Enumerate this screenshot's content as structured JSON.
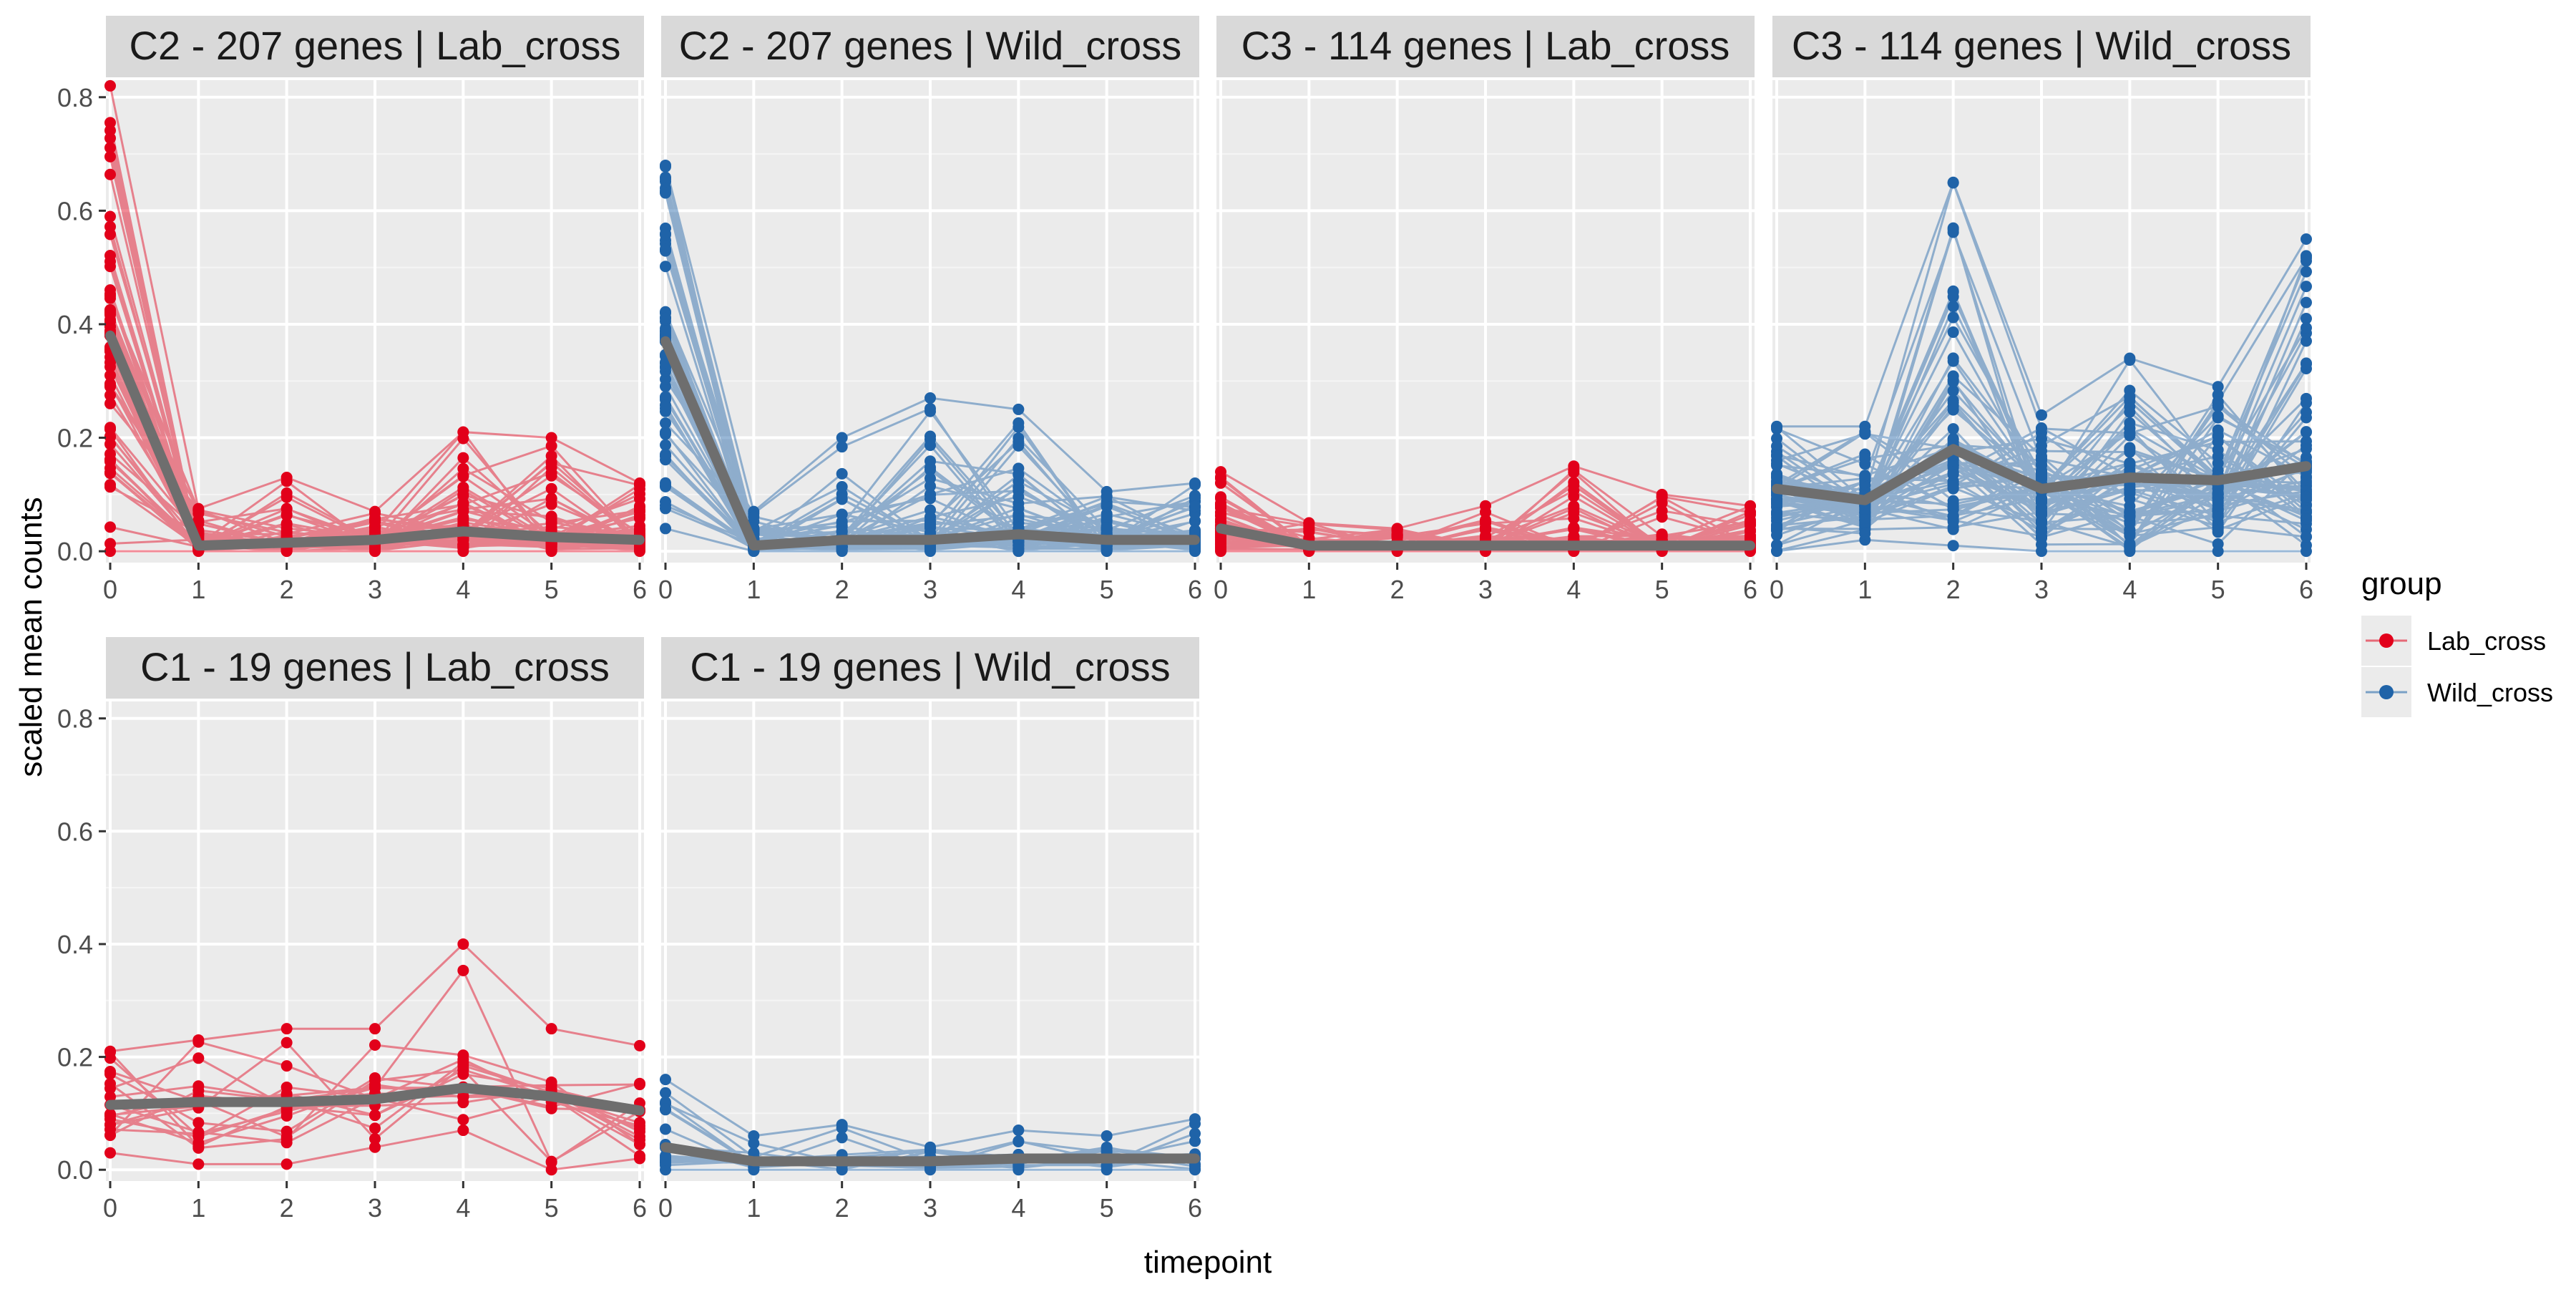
{
  "chart_data": {
    "type": "line",
    "xlabel": "timepoint",
    "ylabel": "scaled mean counts",
    "x_ticks": [
      "0",
      "1",
      "2",
      "3",
      "4",
      "5",
      "6"
    ],
    "y_ticks": [
      "0.0",
      "0.2",
      "0.4",
      "0.6",
      "0.8"
    ],
    "xlim": [
      0,
      6
    ],
    "ylim": [
      -0.02,
      0.83
    ],
    "grid": true,
    "legend": {
      "title": "group",
      "placement": "right",
      "entries": [
        {
          "name": "Lab_cross",
          "color": "#e2001a"
        },
        {
          "name": "Wild_cross",
          "color": "#1f63a8"
        }
      ]
    },
    "mean_line_color": "#6e6e6e",
    "panels": [
      {
        "title": "C2 - 207 genes | Lab_cross",
        "group": "Lab_cross",
        "cluster": "C2",
        "genes": 207,
        "mean": [
          0.38,
          0.01,
          0.015,
          0.02,
          0.035,
          0.025,
          0.02
        ],
        "spread": [
          [
            0.0,
            0.82
          ],
          [
            0.0,
            0.075
          ],
          [
            0.0,
            0.13
          ],
          [
            0.0,
            0.07
          ],
          [
            0.0,
            0.21
          ],
          [
            0.0,
            0.2
          ],
          [
            0.0,
            0.12
          ]
        ]
      },
      {
        "title": "C2 - 207 genes | Wild_cross",
        "group": "Wild_cross",
        "cluster": "C2",
        "genes": 207,
        "mean": [
          0.37,
          0.01,
          0.02,
          0.02,
          0.03,
          0.02,
          0.02
        ],
        "spread": [
          [
            0.04,
            0.68
          ],
          [
            0.0,
            0.07
          ],
          [
            0.0,
            0.2
          ],
          [
            0.0,
            0.27
          ],
          [
            0.0,
            0.25
          ],
          [
            0.0,
            0.105
          ],
          [
            0.0,
            0.12
          ]
        ]
      },
      {
        "title": "C3 - 114 genes | Lab_cross",
        "group": "Lab_cross",
        "cluster": "C3",
        "genes": 114,
        "mean": [
          0.04,
          0.01,
          0.01,
          0.01,
          0.01,
          0.01,
          0.01
        ],
        "spread": [
          [
            0.0,
            0.14
          ],
          [
            0.0,
            0.05
          ],
          [
            0.0,
            0.04
          ],
          [
            0.0,
            0.08
          ],
          [
            0.0,
            0.15
          ],
          [
            0.0,
            0.1
          ],
          [
            0.0,
            0.08
          ]
        ]
      },
      {
        "title": "C3 - 114 genes | Wild_cross",
        "group": "Wild_cross",
        "cluster": "C3",
        "genes": 114,
        "mean": [
          0.11,
          0.09,
          0.18,
          0.11,
          0.13,
          0.125,
          0.15
        ],
        "spread": [
          [
            0.0,
            0.22
          ],
          [
            0.02,
            0.22
          ],
          [
            0.01,
            0.65
          ],
          [
            0.0,
            0.24
          ],
          [
            0.0,
            0.34
          ],
          [
            0.0,
            0.29
          ],
          [
            0.0,
            0.55
          ]
        ]
      },
      {
        "title": "C1 - 19 genes | Lab_cross",
        "group": "Lab_cross",
        "cluster": "C1",
        "genes": 19,
        "mean": [
          0.115,
          0.12,
          0.12,
          0.125,
          0.145,
          0.13,
          0.105
        ],
        "spread": [
          [
            0.03,
            0.21
          ],
          [
            0.01,
            0.23
          ],
          [
            0.01,
            0.25
          ],
          [
            0.04,
            0.25
          ],
          [
            0.07,
            0.4
          ],
          [
            0.0,
            0.25
          ],
          [
            0.02,
            0.22
          ]
        ]
      },
      {
        "title": "C1 - 19 genes | Wild_cross",
        "group": "Wild_cross",
        "cluster": "C1",
        "genes": 19,
        "mean": [
          0.04,
          0.015,
          0.015,
          0.015,
          0.02,
          0.02,
          0.02
        ],
        "spread": [
          [
            0.0,
            0.16
          ],
          [
            0.0,
            0.06
          ],
          [
            0.0,
            0.08
          ],
          [
            0.0,
            0.04
          ],
          [
            0.0,
            0.07
          ],
          [
            0.0,
            0.06
          ],
          [
            0.0,
            0.09
          ]
        ]
      }
    ]
  }
}
